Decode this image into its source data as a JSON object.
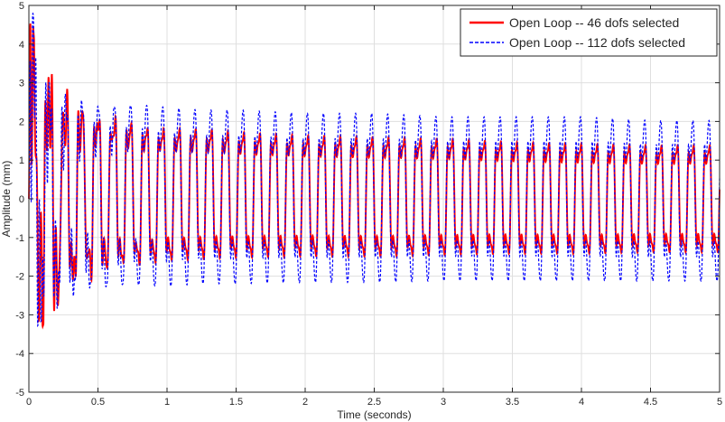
{
  "chart_data": {
    "type": "line",
    "title": "",
    "xlabel": "Time (seconds)",
    "ylabel": "Amplitude (mm)",
    "xlim": [
      0,
      5
    ],
    "ylim": [
      -5,
      5
    ],
    "x_ticks": [
      "0",
      "0.5",
      "1",
      "1.5",
      "2",
      "2.5",
      "3",
      "3.5",
      "4",
      "4.5",
      "5"
    ],
    "y_ticks": [
      "5",
      "4",
      "3",
      "2",
      "1",
      "0",
      "-1",
      "-2",
      "-3",
      "-4",
      "-5"
    ],
    "grid": true,
    "legend_position": "top-right",
    "series": [
      {
        "name": "Open Loop -- 46 dofs selected",
        "color": "#ff0000",
        "line_style": "solid",
        "x": [
          0,
          0.01,
          0.02,
          0.03,
          0.04,
          0.05,
          0.06,
          0.08,
          0.1,
          0.12,
          0.14,
          0.16,
          0.18,
          0.2,
          0.22,
          0.25,
          0.3,
          0.35,
          0.4,
          0.5,
          0.6,
          0.7,
          0.8,
          1.0,
          1.25,
          1.5,
          2.0,
          2.5,
          3.0,
          3.5,
          4.0,
          4.5,
          5.0
        ],
        "y_upper_envelope": [
          0,
          4.6,
          5.0,
          4.5,
          4.0,
          3.6,
          3.2,
          4.6,
          4.1,
          3.8,
          3.4,
          3.1,
          4.4,
          3.0,
          2.9,
          2.9,
          2.8,
          2.7,
          2.7,
          2.6,
          2.5,
          2.4,
          2.3,
          2.2,
          2.2,
          2.1,
          2.0,
          1.95,
          1.9,
          1.8,
          1.75,
          1.7,
          1.7
        ],
        "y_lower_envelope": [
          0,
          -3.4,
          -3.3,
          -3.5,
          -3.8,
          -3.6,
          -3.5,
          -3.0,
          -3.3,
          -3.1,
          -3.4,
          -3.3,
          -3.0,
          -3.0,
          -2.9,
          -2.9,
          -2.7,
          -2.5,
          -2.4,
          -2.3,
          -2.2,
          -2.15,
          -2.1,
          -2.0,
          -1.95,
          -1.9,
          -1.85,
          -1.85,
          -1.8,
          -1.75,
          -1.75,
          -1.7,
          -1.7
        ],
        "dominant_frequency_hz": 8.6
      },
      {
        "name": "Open Loop -- 112 dofs selected",
        "color": "#0000ff",
        "line_style": "dashed",
        "x": [
          0,
          0.01,
          0.02,
          0.03,
          0.04,
          0.05,
          0.06,
          0.08,
          0.1,
          0.12,
          0.14,
          0.16,
          0.18,
          0.2,
          0.22,
          0.25,
          0.3,
          0.35,
          0.4,
          0.5,
          0.6,
          0.7,
          0.8,
          1.0,
          1.25,
          1.5,
          2.0,
          2.5,
          3.0,
          3.5,
          4.0,
          4.5,
          5.0
        ],
        "y_upper_envelope": [
          0,
          4.2,
          4.7,
          4.8,
          4.5,
          4.0,
          3.5,
          3.4,
          3.3,
          3.2,
          3.0,
          3.0,
          2.9,
          2.9,
          2.9,
          2.9,
          2.9,
          2.9,
          2.9,
          2.8,
          2.8,
          2.8,
          2.8,
          2.7,
          2.6,
          2.6,
          2.5,
          2.5,
          2.4,
          2.4,
          2.4,
          2.3,
          2.3
        ],
        "y_lower_envelope": [
          0,
          -4.4,
          -4.0,
          -3.6,
          -3.5,
          -3.3,
          -3.3,
          -3.2,
          -3.1,
          -3.0,
          -3.0,
          -2.9,
          -2.9,
          -2.9,
          -2.9,
          -2.8,
          -2.8,
          -2.8,
          -2.7,
          -2.7,
          -2.7,
          -2.6,
          -2.6,
          -2.6,
          -2.5,
          -2.5,
          -2.45,
          -2.45,
          -2.4,
          -2.4,
          -2.4,
          -2.4,
          -2.4
        ],
        "dominant_frequency_hz": 8.6
      }
    ]
  }
}
